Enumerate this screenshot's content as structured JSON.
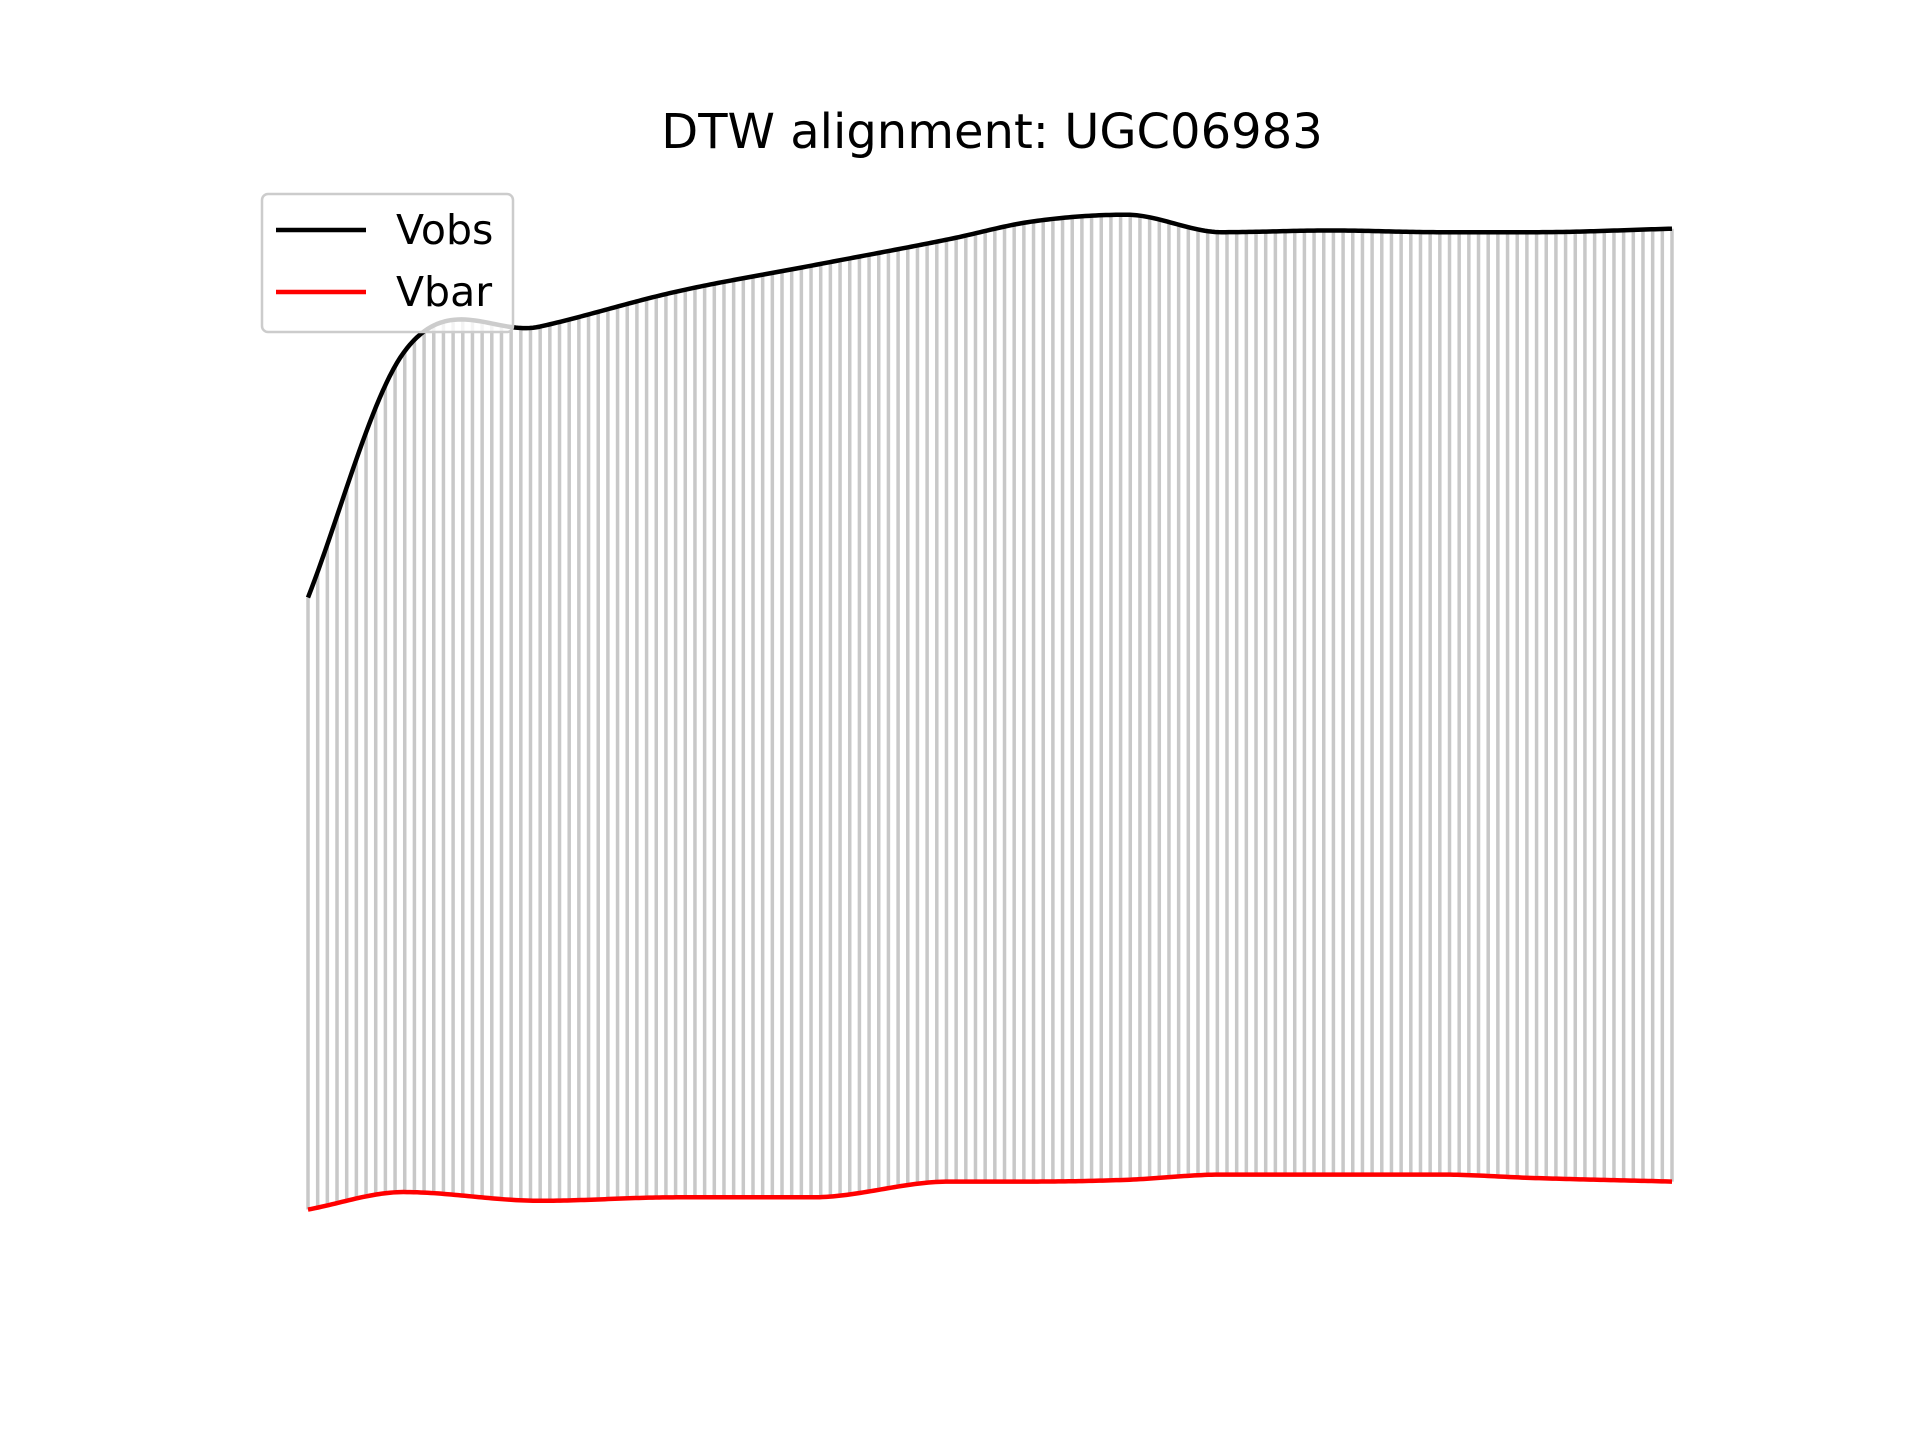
{
  "chart_data": {
    "type": "line",
    "title": "DTW alignment: UGC06983",
    "xlabel": "",
    "ylabel": "",
    "axes_visible": false,
    "grid": false,
    "legend_position": "upper-left",
    "colors": {
      "Vobs": "#000000",
      "Vbar": "#ff0000",
      "connectors": "#c8c8c8"
    },
    "x": [
      0.0,
      0.07,
      0.17,
      0.27,
      0.37,
      0.47,
      0.53,
      0.6,
      0.67,
      0.75,
      0.83,
      0.9,
      1.0
    ],
    "series": [
      {
        "name": "Vobs",
        "values": [
          0.81,
          0.95,
          0.965,
          0.985,
          1.0,
          1.015,
          1.025,
          1.029,
          1.019,
          1.02,
          1.019,
          1.019,
          1.021
        ]
      },
      {
        "name": "Vbar",
        "values": [
          0.46,
          0.47,
          0.465,
          0.467,
          0.467,
          0.476,
          0.476,
          0.477,
          0.48,
          0.48,
          0.48,
          0.478,
          0.476
        ]
      }
    ],
    "alignment": {
      "connector_count": 142,
      "description": "vertical lines linking matched points"
    }
  }
}
